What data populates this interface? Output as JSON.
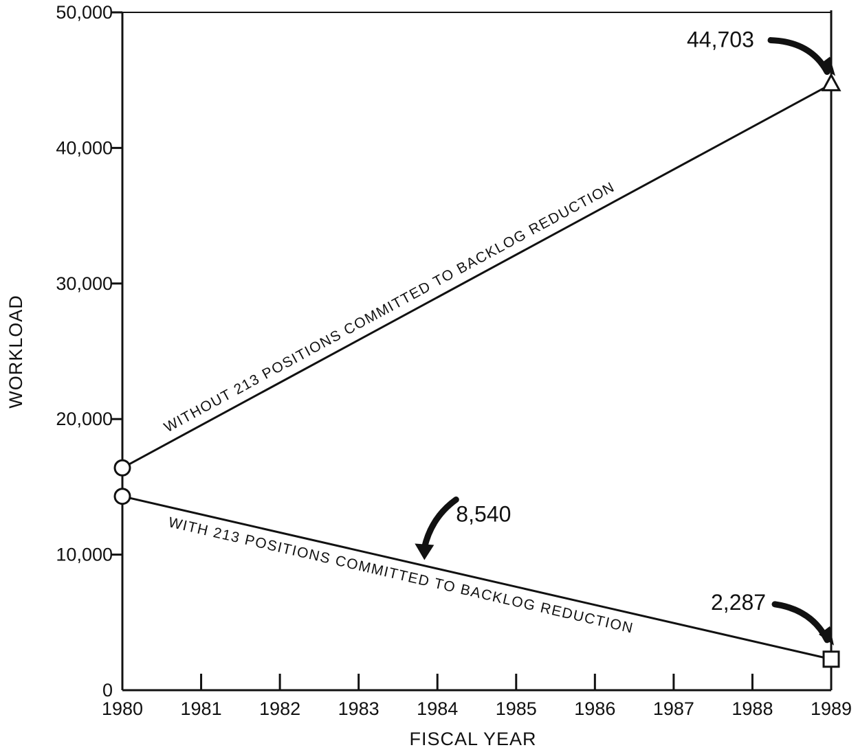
{
  "chart_data": {
    "type": "line",
    "title": "",
    "xlabel": "FISCAL YEAR",
    "ylabel": "WORKLOAD",
    "xlim": [
      1980,
      1989
    ],
    "ylim": [
      0,
      50000
    ],
    "x_ticks": [
      "1980",
      "1981",
      "1982",
      "1983",
      "1984",
      "1985",
      "1986",
      "1987",
      "1988",
      "1989"
    ],
    "y_ticks": [
      "0",
      "10,000",
      "20,000",
      "30,000",
      "40,000",
      "50,000"
    ],
    "grid": false,
    "series": [
      {
        "name": "WITHOUT 213 POSITIONS COMMITTED TO BACKLOG REDUCTION",
        "x": [
          1980,
          1989
        ],
        "y": [
          16400,
          44703
        ],
        "markers": [
          "circle",
          "triangle"
        ]
      },
      {
        "name": "WITH 213 POSITIONS COMMITTED TO BACKLOG REDUCTION",
        "x": [
          1980,
          1989
        ],
        "y": [
          14300,
          2287
        ],
        "markers": [
          "circle",
          "square"
        ]
      }
    ],
    "annotations": [
      {
        "text": "44,703",
        "x": 1989,
        "y": 44703
      },
      {
        "text": "8,540",
        "x": 1983.8,
        "y": 9600
      },
      {
        "text": "2,287",
        "x": 1989,
        "y": 2287
      }
    ]
  }
}
